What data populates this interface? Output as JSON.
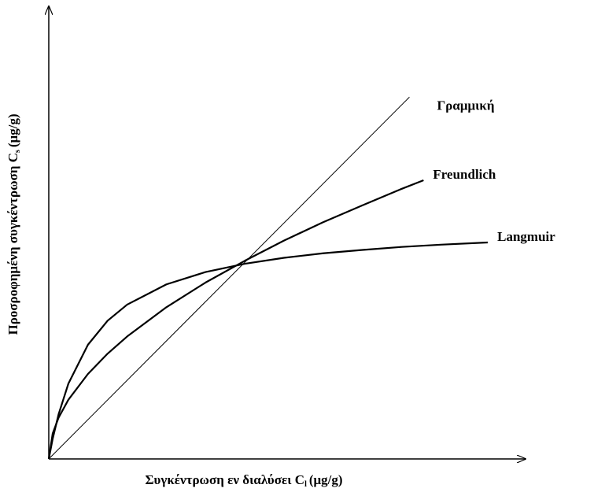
{
  "chart_data": {
    "type": "line",
    "xlabel": "Συγκέντρωση εν διαλύσει  C",
    "xlabel_sub": "l",
    "xlabel_unit": "(μg/g)",
    "ylabel": "Προσροφημένη συγκέντρωση C",
    "ylabel_sub": "s",
    "ylabel_unit": "(μg/g)",
    "xlim": [
      0,
      12
    ],
    "ylim": [
      0,
      12
    ],
    "series": [
      {
        "name": "Γραμμική",
        "color": "#000000",
        "x": [
          0,
          9.2
        ],
        "values": [
          0,
          9.66
        ]
      },
      {
        "name": "Freundlich",
        "color": "#000000",
        "x": [
          0,
          0.1,
          0.25,
          0.5,
          1,
          1.5,
          2,
          3,
          4,
          5,
          6,
          7,
          8,
          9,
          9.56
        ],
        "values": [
          0,
          0.68,
          1.1,
          1.58,
          2.27,
          2.81,
          3.27,
          4.05,
          4.71,
          5.29,
          5.83,
          6.32,
          6.77,
          7.21,
          7.44
        ]
      },
      {
        "name": "Langmuir",
        "color": "#000000",
        "x": [
          0,
          0.1,
          0.25,
          0.5,
          1,
          1.5,
          2,
          3,
          4,
          5,
          6,
          7,
          8,
          9,
          10,
          11.2
        ],
        "values": [
          0,
          0.54,
          1.19,
          2.01,
          3.05,
          3.69,
          4.12,
          4.66,
          4.99,
          5.21,
          5.37,
          5.49,
          5.58,
          5.66,
          5.72,
          5.78
        ]
      }
    ]
  }
}
